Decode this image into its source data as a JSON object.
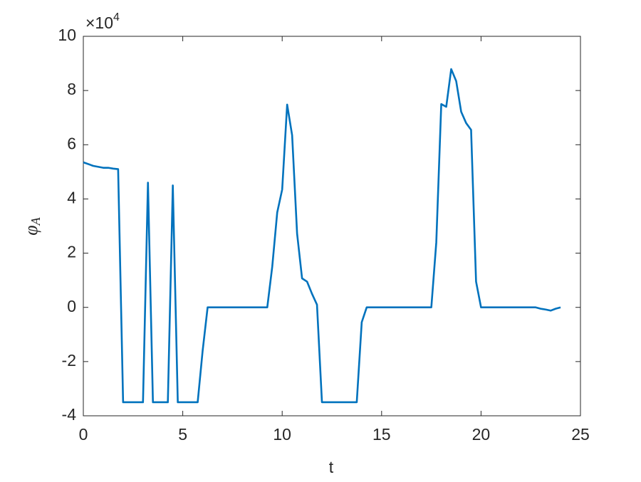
{
  "chart_data": {
    "type": "line",
    "xlabel": "t",
    "ylabel": "φ",
    "ylabel_sub": "A",
    "y_multiplier": "×10",
    "y_multiplier_exponent": "4",
    "x": [
      0,
      0.5,
      1,
      1.25,
      1.5,
      1.75,
      2,
      3,
      3.25,
      3.5,
      4.25,
      4.5,
      4.75,
      5.75,
      6,
      6.25,
      9.25,
      9.5,
      9.75,
      10,
      10.25,
      10.5,
      10.75,
      11,
      11.25,
      11.5,
      11.75,
      12,
      13.75,
      14,
      14.25,
      17.5,
      17.75,
      18,
      18.25,
      18.5,
      18.75,
      19,
      19.25,
      19.5,
      19.75,
      20,
      22.75,
      23,
      23.25,
      23.5,
      23.75,
      24
    ],
    "series": [
      {
        "color": "#0072bd",
        "values": [
          5.35,
          5.22,
          5.15,
          5.15,
          5.12,
          5.1,
          -3.5,
          -3.5,
          4.6,
          -3.5,
          -3.5,
          4.5,
          -3.5,
          -3.5,
          -1.6,
          0,
          0,
          1.5,
          3.5,
          4.35,
          7.48,
          6.35,
          2.72,
          1.07,
          0.95,
          0.5,
          0.1,
          -3.5,
          -3.5,
          -0.55,
          0,
          0,
          2.4,
          7.5,
          7.4,
          8.79,
          8.35,
          7.22,
          6.8,
          6.55,
          0.95,
          0,
          0,
          -0.05,
          -0.08,
          -0.12,
          -0.05,
          0
        ]
      }
    ],
    "xlim": [
      0,
      25
    ],
    "xticks": [
      0,
      5,
      10,
      15,
      20,
      25
    ],
    "ylim": [
      -4,
      10
    ],
    "yticks": [
      -4,
      -2,
      0,
      2,
      4,
      6,
      8,
      10
    ]
  }
}
